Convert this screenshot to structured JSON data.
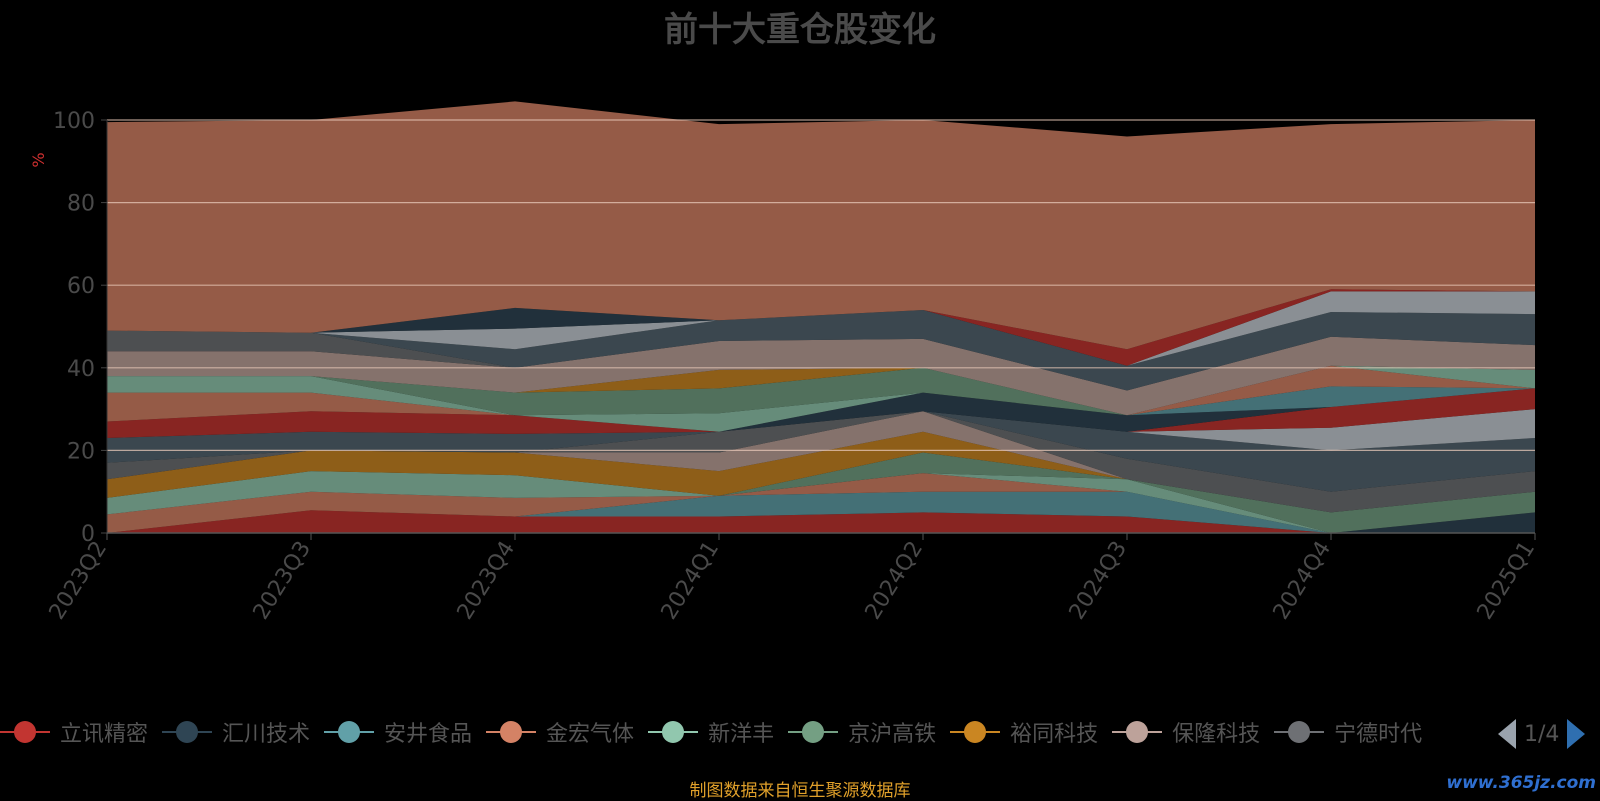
{
  "chart_data": {
    "type": "area",
    "stacked": true,
    "title": "前十大重仓股变化",
    "ylabel": "%",
    "ylim": [
      0,
      100
    ],
    "yticks": [
      0,
      20,
      40,
      60,
      80,
      100
    ],
    "categories": [
      "2023Q2",
      "2023Q3",
      "2023Q4",
      "2024Q1",
      "2024Q2",
      "2024Q3",
      "2024Q4",
      "2025Q1"
    ],
    "grid": "horizontal",
    "legend_position": "bottom",
    "series": [
      {
        "name": "立讯精密",
        "color": "#c23531",
        "values": [
          0,
          5.5,
          4,
          4,
          5,
          4,
          0,
          0
        ]
      },
      {
        "name": "汇川技术",
        "color": "#2f4554",
        "values": [
          0,
          0,
          0,
          0,
          0,
          0,
          0,
          5
        ]
      },
      {
        "name": "安井食品",
        "color": "#61a0a8",
        "values": [
          0,
          0,
          0,
          5,
          5,
          6,
          0,
          0
        ]
      },
      {
        "name": "金宏气体",
        "color": "#d48265",
        "values": [
          4.5,
          4.5,
          4.5,
          0,
          4.5,
          0,
          0,
          0
        ]
      },
      {
        "name": "新洋丰",
        "color": "#91c7ae",
        "values": [
          4,
          5,
          5.5,
          0,
          0,
          3,
          0,
          0
        ]
      },
      {
        "name": "京沪高铁",
        "color": "#749f83",
        "values": [
          0,
          0,
          0,
          0,
          5,
          0,
          5,
          5
        ]
      },
      {
        "name": "裕同科技",
        "color": "#ca8622",
        "values": [
          4.5,
          5,
          5.5,
          6,
          5,
          0,
          0,
          0
        ]
      },
      {
        "name": "保隆科技",
        "color": "#bda29a",
        "values": [
          0,
          0,
          0,
          4.5,
          5,
          0,
          0,
          0
        ]
      },
      {
        "name": "宁德时代",
        "color": "#6e7074",
        "values": [
          4,
          0,
          0,
          5,
          0,
          5,
          5,
          5
        ]
      }
    ],
    "others": [
      {
        "color": "#546570",
        "values": [
          6,
          4.5,
          4.5,
          0,
          0,
          6.5,
          10,
          8
        ]
      },
      {
        "color": "#c4ccd3",
        "values": [
          0,
          0,
          0,
          0,
          0,
          0,
          5.5,
          7
        ]
      },
      {
        "color": "#c23531",
        "values": [
          4,
          5,
          4.5,
          0,
          0,
          0,
          5,
          5
        ]
      },
      {
        "color": "#2f4554",
        "values": [
          0,
          0,
          0,
          0,
          4.5,
          4,
          0,
          0
        ]
      },
      {
        "color": "#61a0a8",
        "values": [
          0,
          0,
          0,
          0,
          0,
          0,
          5,
          0
        ]
      },
      {
        "color": "#d48265",
        "values": [
          7,
          4.5,
          0,
          0,
          0,
          0,
          5,
          0
        ]
      },
      {
        "color": "#91c7ae",
        "values": [
          4,
          4,
          0,
          4.5,
          0,
          0,
          0,
          4.5
        ]
      },
      {
        "color": "#749f83",
        "values": [
          0,
          0,
          5.5,
          6,
          6,
          0,
          0,
          0
        ]
      },
      {
        "color": "#ca8622",
        "values": [
          0,
          0,
          0,
          4.5,
          0,
          0,
          0,
          0
        ]
      },
      {
        "color": "#bda29a",
        "values": [
          6,
          6,
          6,
          7,
          7,
          6,
          7,
          6
        ]
      },
      {
        "color": "#6e7074",
        "values": [
          5,
          4.5,
          0,
          0,
          0,
          0,
          0,
          0
        ]
      },
      {
        "color": "#546570",
        "values": [
          0,
          0,
          4.5,
          5,
          7,
          6,
          6,
          7.5
        ]
      },
      {
        "color": "#c4ccd3",
        "values": [
          0,
          0,
          5,
          0,
          0,
          0,
          5,
          5.5
        ]
      },
      {
        "color": "#2f4554",
        "values": [
          0,
          0,
          5,
          0,
          0,
          0,
          0,
          0
        ]
      },
      {
        "color": "#c23531",
        "values": [
          0,
          0,
          0,
          0,
          0,
          4,
          0.5,
          0
        ]
      },
      {
        "color": "#d48265",
        "values": [
          50.5,
          51.5,
          50,
          47.5,
          46,
          51.5,
          40,
          41.5
        ]
      }
    ]
  },
  "legend": {
    "pager": "1/4"
  },
  "source_note": "制图数据来自恒生聚源数据库",
  "watermark": "www.365jz.com"
}
